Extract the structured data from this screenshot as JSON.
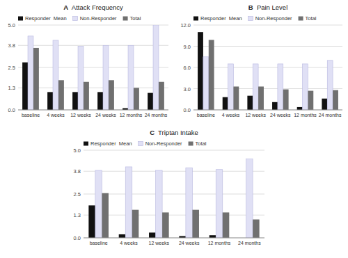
{
  "chart_data": [
    {
      "type": "bar",
      "title": "A  Attack Frequency",
      "categories": [
        "baseline",
        "4 weeks",
        "12 weeks",
        "24 weeks",
        "12 months",
        "24 months"
      ],
      "series": [
        {
          "name": "Responder  Mean",
          "color": "#111111",
          "values": [
            2.8,
            1.05,
            1.05,
            1.05,
            0.1,
            1.0
          ]
        },
        {
          "name": "Non-Responder",
          "color": "#e0e0f5",
          "values": [
            4.35,
            4.1,
            3.75,
            3.8,
            3.8,
            5.0
          ]
        },
        {
          "name": "Total",
          "color": "#707070",
          "values": [
            3.65,
            1.75,
            1.65,
            1.75,
            1.3,
            1.65
          ]
        }
      ],
      "ylim": [
        0,
        5.0
      ],
      "yticks": [
        {
          "value": 0,
          "label": "0.0"
        },
        1.3,
        2.5,
        3.8,
        {
          "value": 5,
          "label": "5.0"
        }
      ],
      "grid": true,
      "legend": "top-left"
    },
    {
      "type": "bar",
      "title": "B  Pain Level",
      "categories": [
        "baseline",
        "4 weeks",
        "12 weeks",
        "24 weeks",
        "12 months",
        "24 months"
      ],
      "series": [
        {
          "name": "Responder  Mean",
          "color": "#111111",
          "values": [
            11.0,
            1.8,
            2.0,
            1.1,
            0.4,
            1.6
          ]
        },
        {
          "name": "Non-Responder",
          "color": "#e0e0f5",
          "values": [
            7.5,
            6.5,
            6.5,
            6.5,
            6.5,
            7.0
          ]
        },
        {
          "name": "Total",
          "color": "#707070",
          "values": [
            9.9,
            3.3,
            3.3,
            2.9,
            2.7,
            2.8
          ]
        }
      ],
      "ylim": [
        0,
        12.0
      ],
      "yticks": [
        {
          "value": 0,
          "label": "0.0"
        },
        {
          "value": 3,
          "label": "3.0"
        },
        {
          "value": 6,
          "label": "6.0"
        },
        {
          "value": 9,
          "label": "9.0"
        },
        {
          "value": 12,
          "label": "12.0"
        }
      ],
      "grid": true,
      "legend": "top-left"
    },
    {
      "type": "bar",
      "title": "C  Triptan Intake",
      "categories": [
        "baseline",
        "4 weeks",
        "12 weeks",
        "24 weeks",
        "12 months",
        "24 months"
      ],
      "series": [
        {
          "name": "Responder  Mean",
          "color": "#111111",
          "values": [
            1.85,
            0.2,
            0.3,
            0.1,
            0.15,
            0.0
          ]
        },
        {
          "name": "Non-Responder",
          "color": "#e0e0f5",
          "values": [
            3.85,
            4.05,
            3.85,
            4.0,
            3.9,
            4.5
          ]
        },
        {
          "name": "Total",
          "color": "#707070",
          "values": [
            2.55,
            1.6,
            1.45,
            1.6,
            1.45,
            1.05
          ]
        }
      ],
      "ylim": [
        0,
        5.0
      ],
      "yticks": [
        {
          "value": 0,
          "label": "0.0"
        },
        1.3,
        2.5,
        3.8,
        {
          "value": 5,
          "label": "5.0"
        }
      ],
      "grid": true,
      "legend": "top-left"
    }
  ]
}
